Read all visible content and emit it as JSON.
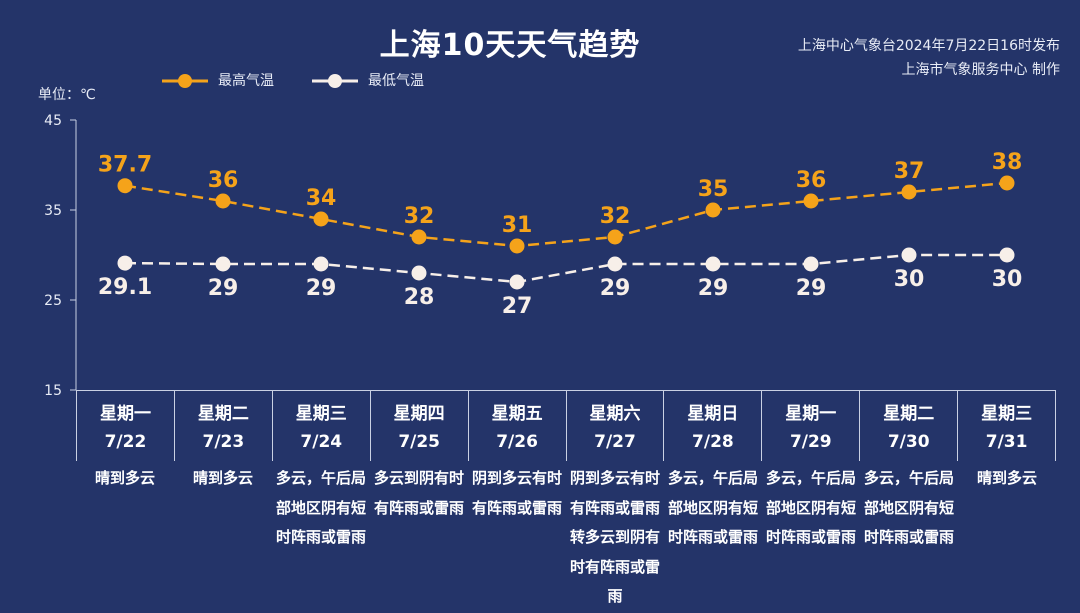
{
  "title": "上海10天天气趋势",
  "source": {
    "line1": "上海中心气象台2024年7月22日16时发布",
    "line2": "上海市气象服务中心 制作"
  },
  "unit_label": "单位：℃",
  "colors": {
    "background": "#243469",
    "high": "#f5a31a",
    "low": "#f7efe9"
  },
  "chart_data": {
    "type": "line",
    "title": "上海10天天气趋势",
    "ylabel": "单位：℃",
    "ylim": [
      15,
      45
    ],
    "yticks": [
      "15",
      "25",
      "35",
      "45"
    ],
    "categories": [
      "7/22",
      "7/23",
      "7/24",
      "7/25",
      "7/26",
      "7/27",
      "7/28",
      "7/29",
      "7/30",
      "7/31"
    ],
    "series": [
      {
        "name": "最高气温",
        "values": [
          37.7,
          36,
          34,
          32,
          31,
          32,
          35,
          36,
          37,
          38
        ],
        "labels": [
          "37.7",
          "36",
          "34",
          "32",
          "31",
          "32",
          "35",
          "36",
          "37",
          "38"
        ],
        "style": "dashed",
        "color": "#f5a31a"
      },
      {
        "name": "最低气温",
        "values": [
          29.1,
          29,
          29,
          28,
          27,
          29,
          29,
          29,
          30,
          30
        ],
        "labels": [
          "29.1",
          "29",
          "29",
          "28",
          "27",
          "29",
          "29",
          "29",
          "30",
          "30"
        ],
        "style": "dashed",
        "color": "#f7efe9"
      }
    ],
    "legend": "top-left",
    "grid": false
  },
  "days": [
    {
      "weekday": "星期一",
      "date": "7/22",
      "weather": "晴到多云"
    },
    {
      "weekday": "星期二",
      "date": "7/23",
      "weather": "晴到多云"
    },
    {
      "weekday": "星期三",
      "date": "7/24",
      "weather": "多云，午后局部地区阴有短时阵雨或雷雨"
    },
    {
      "weekday": "星期四",
      "date": "7/25",
      "weather": "多云到阴有时有阵雨或雷雨"
    },
    {
      "weekday": "星期五",
      "date": "7/26",
      "weather": "阴到多云有时有阵雨或雷雨"
    },
    {
      "weekday": "星期六",
      "date": "7/27",
      "weather": "阴到多云有时有阵雨或雷雨转多云到阴有时有阵雨或雷雨"
    },
    {
      "weekday": "星期日",
      "date": "7/28",
      "weather": "多云，午后局部地区阴有短时阵雨或雷雨"
    },
    {
      "weekday": "星期一",
      "date": "7/29",
      "weather": "多云，午后局部地区阴有短时阵雨或雷雨"
    },
    {
      "weekday": "星期二",
      "date": "7/30",
      "weather": "多云，午后局部地区阴有短时阵雨或雷雨"
    },
    {
      "weekday": "星期三",
      "date": "7/31",
      "weather": "晴到多云"
    }
  ]
}
